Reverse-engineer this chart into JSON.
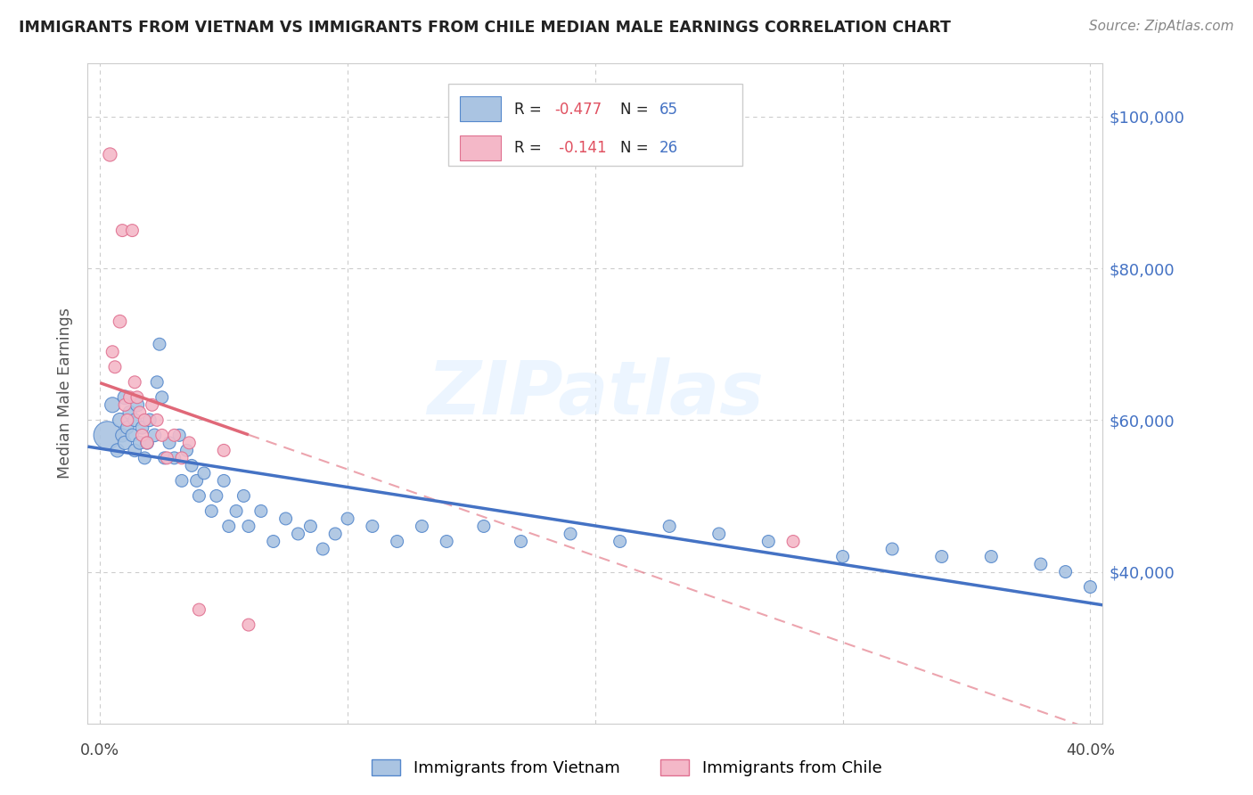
{
  "title": "IMMIGRANTS FROM VIETNAM VS IMMIGRANTS FROM CHILE MEDIAN MALE EARNINGS CORRELATION CHART",
  "source": "Source: ZipAtlas.com",
  "ylabel": "Median Male Earnings",
  "watermark": "ZIPatlas",
  "xlim": [
    -0.005,
    0.405
  ],
  "ylim": [
    20000,
    107000
  ],
  "yticks": [
    40000,
    60000,
    80000,
    100000
  ],
  "ytick_labels": [
    "$40,000",
    "$60,000",
    "$80,000",
    "$100,000"
  ],
  "xticks": [
    0.0,
    0.1,
    0.2,
    0.3,
    0.4
  ],
  "color_vietnam": "#aac4e2",
  "color_chile": "#f4b8c8",
  "color_vietnam_edge": "#5588cc",
  "color_chile_edge": "#e07090",
  "color_vietnam_line": "#4472c4",
  "color_chile_line": "#e06878",
  "color_axis_labels": "#4472c4",
  "color_title": "#222222",
  "background_color": "#ffffff",
  "grid_color": "#cccccc",
  "vietnam_x": [
    0.003,
    0.005,
    0.007,
    0.008,
    0.009,
    0.01,
    0.01,
    0.011,
    0.012,
    0.013,
    0.014,
    0.014,
    0.015,
    0.016,
    0.017,
    0.018,
    0.019,
    0.02,
    0.022,
    0.023,
    0.024,
    0.025,
    0.026,
    0.028,
    0.03,
    0.032,
    0.033,
    0.035,
    0.037,
    0.039,
    0.04,
    0.042,
    0.045,
    0.047,
    0.05,
    0.052,
    0.055,
    0.058,
    0.06,
    0.065,
    0.07,
    0.075,
    0.08,
    0.085,
    0.09,
    0.095,
    0.1,
    0.11,
    0.12,
    0.13,
    0.14,
    0.155,
    0.17,
    0.19,
    0.21,
    0.23,
    0.25,
    0.27,
    0.3,
    0.32,
    0.34,
    0.36,
    0.38,
    0.39,
    0.4
  ],
  "vietnam_y": [
    58000,
    62000,
    56000,
    60000,
    58000,
    63000,
    57000,
    59000,
    61000,
    58000,
    56000,
    60000,
    62000,
    57000,
    59000,
    55000,
    57000,
    60000,
    58000,
    65000,
    70000,
    63000,
    55000,
    57000,
    55000,
    58000,
    52000,
    56000,
    54000,
    52000,
    50000,
    53000,
    48000,
    50000,
    52000,
    46000,
    48000,
    50000,
    46000,
    48000,
    44000,
    47000,
    45000,
    46000,
    43000,
    45000,
    47000,
    46000,
    44000,
    46000,
    44000,
    46000,
    44000,
    45000,
    44000,
    46000,
    45000,
    44000,
    42000,
    43000,
    42000,
    42000,
    41000,
    40000,
    38000
  ],
  "vietnam_sizes": [
    500,
    150,
    120,
    130,
    120,
    130,
    120,
    110,
    120,
    110,
    110,
    110,
    120,
    110,
    110,
    100,
    110,
    110,
    110,
    100,
    100,
    100,
    100,
    100,
    100,
    100,
    100,
    100,
    100,
    100,
    100,
    100,
    100,
    100,
    100,
    100,
    100,
    100,
    100,
    100,
    100,
    100,
    100,
    100,
    100,
    100,
    100,
    100,
    100,
    100,
    100,
    100,
    100,
    100,
    100,
    100,
    100,
    100,
    100,
    100,
    100,
    100,
    100,
    100,
    100
  ],
  "chile_x": [
    0.004,
    0.005,
    0.006,
    0.008,
    0.009,
    0.01,
    0.011,
    0.012,
    0.013,
    0.014,
    0.015,
    0.016,
    0.017,
    0.018,
    0.019,
    0.021,
    0.023,
    0.025,
    0.027,
    0.03,
    0.033,
    0.036,
    0.04,
    0.05,
    0.06,
    0.28
  ],
  "chile_y": [
    95000,
    69000,
    67000,
    73000,
    85000,
    62000,
    60000,
    63000,
    85000,
    65000,
    63000,
    61000,
    58000,
    60000,
    57000,
    62000,
    60000,
    58000,
    55000,
    58000,
    55000,
    57000,
    35000,
    56000,
    33000,
    44000
  ],
  "chile_sizes": [
    120,
    100,
    100,
    110,
    100,
    100,
    100,
    100,
    100,
    100,
    100,
    100,
    100,
    100,
    100,
    100,
    100,
    100,
    100,
    100,
    100,
    100,
    100,
    100,
    100,
    100
  ]
}
